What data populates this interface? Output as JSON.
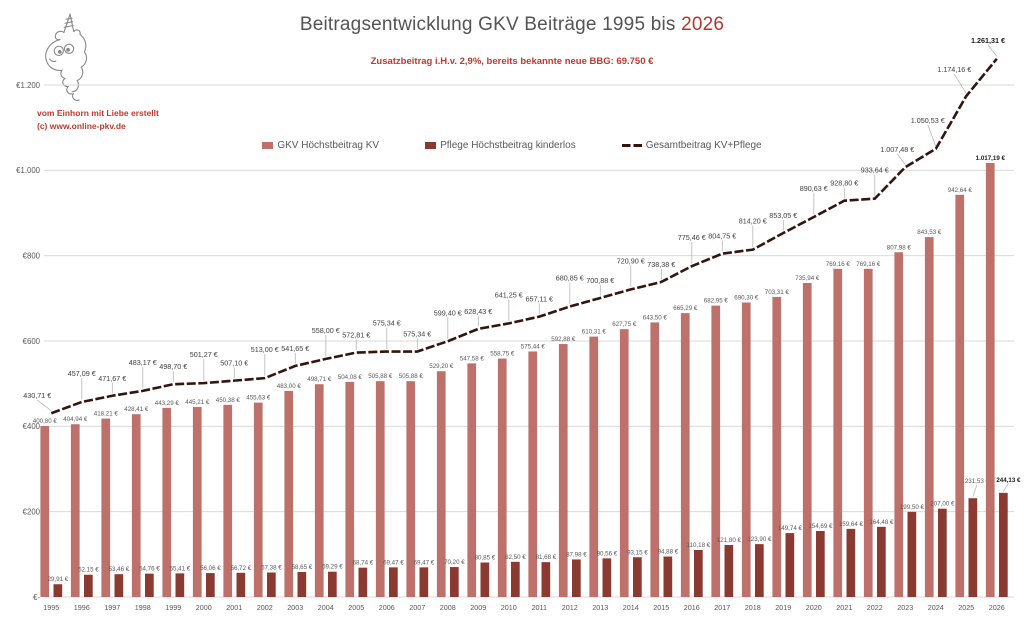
{
  "title": {
    "prefix": "Beitragsentwicklung GKV Beiträge 1995 bis ",
    "highlight": "2026"
  },
  "subtitle": "Zusatzbeitrag i.H.v. 2,9%, bereits bekannte neue BBG: 69.750 €",
  "credit": {
    "line1": "vom Einhorn mit Liebe erstellt",
    "line2": "(c) www.online-pkv.de"
  },
  "legend": [
    {
      "label": "GKV Höchstbeitrag KV",
      "color": "#be716a",
      "type": "square"
    },
    {
      "label": "Pflege Höchstbeitrag kinderlos",
      "color": "#8a3a31",
      "type": "square"
    },
    {
      "label": "Gesamtbeitrag KV+Pflege",
      "color": "#33140e",
      "type": "dash"
    }
  ],
  "colors": {
    "bar_kv": "#be716a",
    "bar_pflege": "#8a3a31",
    "line_gesamt": "#33140e",
    "grid": "#d9d9d9",
    "axis_text": "#595959",
    "label_text": "#595959",
    "line_label_text": "#404040",
    "bold_label_text": "#1a1a1a",
    "leader": "#b7b7b7",
    "accent_red": "#c0392b"
  },
  "y_axis": {
    "labels": [
      "€1.200",
      "€1.000",
      "€800",
      "€600",
      "€400",
      "€200",
      "€-"
    ],
    "values": [
      1200,
      1000,
      800,
      600,
      400,
      200,
      0
    ]
  },
  "chart_data": {
    "type": "combo-bar-line",
    "title": "Beitragsentwicklung GKV Beiträge 1995 bis 2026",
    "categories": [
      "1995",
      "1996",
      "1997",
      "1998",
      "1999",
      "2000",
      "2001",
      "2002",
      "2003",
      "2004",
      "2005",
      "2006",
      "2007",
      "2008",
      "2009",
      "2010",
      "2011",
      "2012",
      "2013",
      "2014",
      "2015",
      "2016",
      "2017",
      "2018",
      "2019",
      "2020",
      "2021",
      "2022",
      "2023",
      "2024",
      "2025",
      "2026"
    ],
    "ylim": [
      0,
      1300
    ],
    "grid": true,
    "legend_position": "top",
    "series": [
      {
        "name": "GKV Höchstbeitrag KV",
        "type": "bar",
        "color": "#be716a",
        "values": [
          400.8,
          404.94,
          418.21,
          428.41,
          443.29,
          445.21,
          450.38,
          455.63,
          483.0,
          498.71,
          504.08,
          505.88,
          505.88,
          529.2,
          547.58,
          558.75,
          575.44,
          592.88,
          610.31,
          627.75,
          643.5,
          665.29,
          682.95,
          690.3,
          703.31,
          735.94,
          769.16,
          769.16,
          807.98,
          843.53,
          942.64,
          1017.19
        ],
        "labels": [
          "400,80 €",
          "404,94 €",
          "418,21 €",
          "428,41 €",
          "443,29 €",
          "445,21 €",
          "450,38 €",
          "455,63 €",
          "483,00 €",
          "498,71 €",
          "504,08 €",
          "505,88 €",
          "505,88 €",
          "529,20 €",
          "547,58 €",
          "558,75 €",
          "575,44 €",
          "592,88 €",
          "610,31 €",
          "627,75 €",
          "643,50 €",
          "665,29 €",
          "682,95 €",
          "690,30 €",
          "703,31 €",
          "735,94 €",
          "769,16 €",
          "769,16 €",
          "807,98 €",
          "843,53 €",
          "942,64 €",
          "1.017,19 €"
        ]
      },
      {
        "name": "Pflege Höchstbeitrag kinderlos",
        "type": "bar",
        "color": "#8a3a31",
        "values": [
          29.91,
          52.15,
          53.46,
          54.76,
          55.41,
          56.06,
          56.72,
          57.38,
          58.65,
          59.29,
          68.74,
          69.47,
          69.47,
          70.2,
          80.85,
          82.5,
          81.68,
          87.98,
          90.56,
          93.15,
          94.88,
          110.18,
          121.8,
          123.9,
          149.74,
          154.69,
          159.64,
          164.48,
          199.5,
          207.0,
          231.53,
          244.13
        ],
        "labels": [
          "29,91 €",
          "52,15 €",
          "53,46 €",
          "54,76 €",
          "55,41 €",
          "56,06 €",
          "56,72 €",
          "57,38 €",
          "58,65 €",
          "59,29 €",
          "68,74 €",
          "69,47 €",
          "69,47 €",
          "70,20 €",
          "80,85 €",
          "82,50 €",
          "81,68 €",
          "87,98 €",
          "90,56 €",
          "93,15 €",
          "94,88 €",
          "110,18 €",
          "121,80 €",
          "123,90 €",
          "149,74 €",
          "154,69 €",
          "159,64 €",
          "164,48 €",
          "199,50 €",
          "207,00 €",
          "231,53 €",
          "244,13 €"
        ]
      },
      {
        "name": "Gesamtbeitrag KV+Pflege",
        "type": "line",
        "color": "#33140e",
        "values": [
          430.71,
          457.09,
          471.67,
          483.17,
          498.7,
          501.27,
          507.1,
          513.0,
          541.65,
          558.0,
          572.81,
          575.34,
          575.34,
          599.4,
          628.43,
          641.25,
          657.11,
          680.85,
          700.88,
          720.9,
          738.38,
          775.46,
          804.75,
          814.2,
          853.05,
          890.63,
          928.8,
          933.64,
          1007.48,
          1050.53,
          1174.16,
          1261.31
        ],
        "labels": [
          "430,71 €",
          "457,09 €",
          "471,67 €",
          "483,17 €",
          "498,70 €",
          "501,27 €",
          "507,10 €",
          "513,00 €",
          "541,65 €",
          "558,00 €",
          "572,81 €",
          "575,34 €",
          "575,34 €",
          "599,40 €",
          "628,43 €",
          "641,25 €",
          "657,11 €",
          "680,85 €",
          "700,88 €",
          "720,90 €",
          "738,38 €",
          "775,46 €",
          "804,75 €",
          "814,20 €",
          "853,05 €",
          "890,63 €",
          "928,80 €",
          "933,64 €",
          "1.007,48 €",
          "1.050,53 €",
          "1.174,16 €",
          "1.261,31 €"
        ]
      }
    ]
  }
}
